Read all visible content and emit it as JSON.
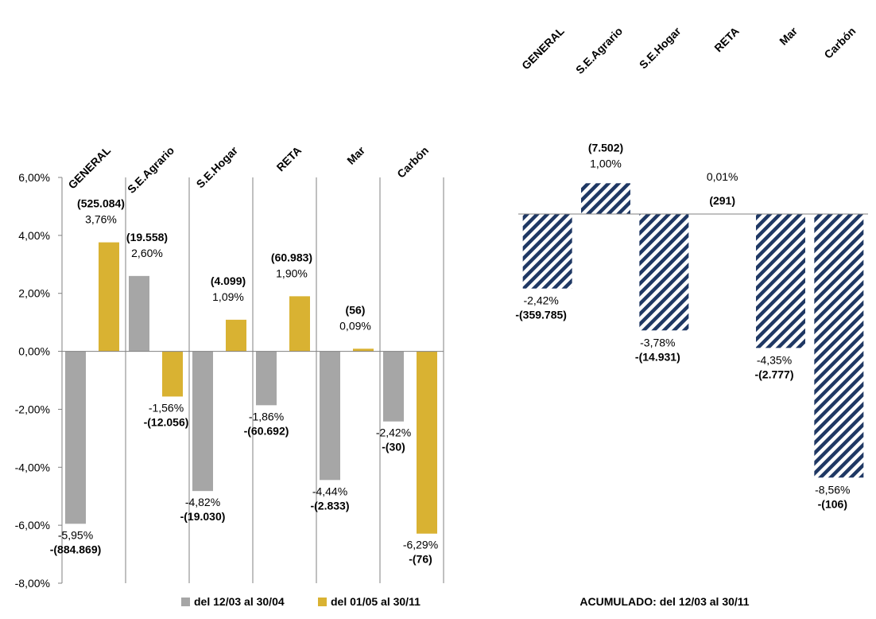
{
  "colors": {
    "gray": "#a6a6a6",
    "gold": "#d9b232",
    "navy": "#1f3864",
    "axis": "#808080"
  },
  "chart_data": [
    {
      "type": "bar",
      "categories": [
        "GENERAL",
        "S.E.Agrario",
        "S.E.Hogar",
        "RETA",
        "Mar",
        "Carbón"
      ],
      "ylim": [
        -8,
        6
      ],
      "yticks": [
        "-8,00%",
        "-6,00%",
        "-4,00%",
        "-2,00%",
        "0,00%",
        "2,00%",
        "4,00%",
        "6,00%"
      ],
      "series": [
        {
          "name": "del 12/03 al 30/04",
          "values": [
            -5.95,
            2.6,
            -4.82,
            -1.86,
            -4.44,
            -2.42
          ],
          "pct_labels": [
            "-5,95%",
            "2,60%",
            "-4,82%",
            "-1,86%",
            "-4,44%",
            "-2,42%"
          ],
          "count_labels": [
            "-(884.869)",
            "(19.558)",
            "-(19.030)",
            "-(60.692)",
            "-(2.833)",
            "-(30)"
          ]
        },
        {
          "name": "del 01/05 al 30/11",
          "values": [
            3.76,
            -1.56,
            1.09,
            1.9,
            0.09,
            -6.29
          ],
          "pct_labels": [
            "3,76%",
            "-1,56%",
            "1,09%",
            "1,90%",
            "0,09%",
            "-6,29%"
          ],
          "count_labels": [
            "(525.084)",
            "-(12.056)",
            "(4.099)",
            "(60.983)",
            "(56)",
            "-(76)"
          ]
        }
      ],
      "legend_position": "bottom"
    },
    {
      "type": "bar",
      "title": "ACUMULADO: del 12/03 al 30/11",
      "categories": [
        "GENERAL",
        "S.E.Agrario",
        "S.E.Hogar",
        "RETA",
        "Mar",
        "Carbón"
      ],
      "values": [
        -2.42,
        1.0,
        -3.78,
        0.01,
        -4.35,
        -8.56
      ],
      "pct_labels": [
        "-2,42%",
        "1,00%",
        "-3,78%",
        "0,01%",
        "-4,35%",
        "-8,56%"
      ],
      "count_labels": [
        "-(359.785)",
        "(7.502)",
        "-(14.931)",
        "(291)",
        "-(2.777)",
        "-(106)"
      ]
    }
  ]
}
